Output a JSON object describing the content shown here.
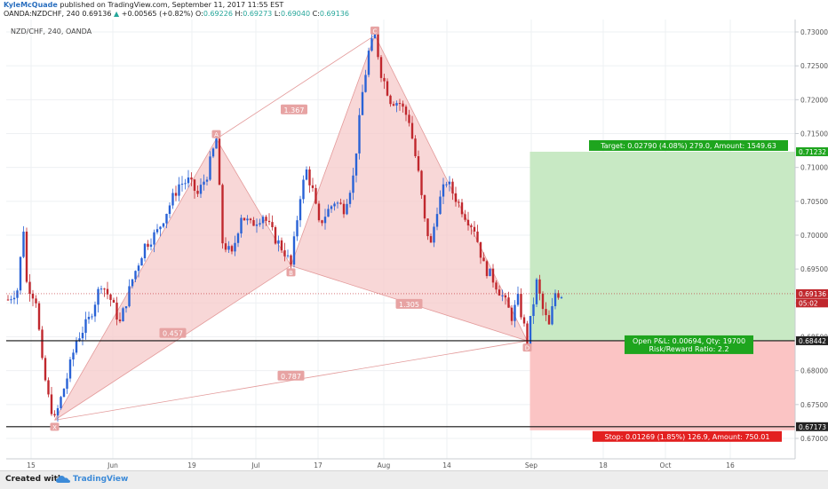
{
  "header": {
    "author": "KyleMcQuade",
    "published_text": "published on TradingView.com, September 11, 2017 11:55 EST",
    "symbol": "OANDA:NZDCHF, 240",
    "last": "0.69136",
    "change_arrow": "▲",
    "change": "+0.00565 (+0.82%)",
    "ohlc_o_label": "O:",
    "ohlc_o": "0.69226",
    "ohlc_h_label": "H:",
    "ohlc_h": "0.69273",
    "ohlc_l_label": "L:",
    "ohlc_l": "0.69040",
    "ohlc_c_label": "C:",
    "ohlc_c": "0.69136"
  },
  "footer": {
    "created_with": "Created with",
    "brand": "TradingView"
  },
  "colors": {
    "bull": "#2962d6",
    "bear": "#c0272d",
    "pattern_fill": "#f6c9c9",
    "pattern_line": "#e39a9a",
    "target_zone": "#c8e9c4",
    "stop_zone": "#fbc4c4",
    "target_label": "#1ea51e",
    "stop_label": "#e32020"
  },
  "chart_data": {
    "type": "candlestick",
    "instrument_label": "NZD/CHF, 240, OANDA",
    "x_tick_labels": [
      "15",
      "Jun",
      "19",
      "Jul",
      "17",
      "Aug",
      "14",
      "Sep",
      "18",
      "Oct",
      "16"
    ],
    "ylim": [
      0.6665,
      0.7315
    ],
    "y_ticks": [
      "0.73000",
      "0.72500",
      "0.72000",
      "0.71500",
      "0.71000",
      "0.70500",
      "0.70000",
      "0.69500",
      "0.69000",
      "0.68500",
      "0.68000",
      "0.67500",
      "0.67000"
    ],
    "y_tick_values": [
      0.73,
      0.725,
      0.72,
      0.715,
      0.71,
      0.705,
      0.7,
      0.695,
      0.69,
      0.685,
      0.68,
      0.675,
      0.67
    ],
    "price_tags": [
      {
        "label": "0.71232",
        "value": 0.71232,
        "color": "#1ea51e"
      },
      {
        "label": "0.69136",
        "value": 0.69136,
        "color": "#c0272d"
      },
      {
        "label": "05:02",
        "value": 0.69,
        "color": "#c0272d"
      },
      {
        "label": "0.68442",
        "value": 0.68442,
        "color": "#222222"
      },
      {
        "label": "0.67173",
        "value": 0.67173,
        "color": "#222222"
      }
    ],
    "horizontal_lines": [
      {
        "name": "entry",
        "value": 0.68442
      },
      {
        "name": "stop",
        "value": 0.67173
      }
    ],
    "current_price_line": 0.69136,
    "pattern_points": [
      {
        "label": "X",
        "i": 15,
        "price": 0.6727
      },
      {
        "label": "A",
        "i": 67,
        "price": 0.7142
      },
      {
        "label": "B",
        "i": 91,
        "price": 0.6955
      },
      {
        "label": "C",
        "i": 118,
        "price": 0.7295
      },
      {
        "label": "D",
        "i": 167,
        "price": 0.6844
      }
    ],
    "ratios": [
      {
        "label": "1.367",
        "price": 0.7185,
        "i": 92
      },
      {
        "label": "0.457",
        "price": 0.6855,
        "i": 53
      },
      {
        "label": "1.305",
        "price": 0.6898,
        "i": 129
      },
      {
        "label": "0.787",
        "price": 0.6792,
        "i": 91
      }
    ],
    "position": {
      "entry": 0.68442,
      "target": 0.71232,
      "stop": 0.67173,
      "start_i": 167,
      "end_i": 245,
      "target_text": "Target: 0.02790 (4.08%) 279.0, Amount: 1549.63",
      "stop_text": "Stop: 0.01269 (1.85%) 126.9, Amount: 750.01",
      "pnl_text": "Open P&L: 0.00694, Qty: 19700",
      "ratio_text": "Risk/Reward Ratio: 2.2"
    },
    "path_points": [
      [
        0,
        0.6905
      ],
      [
        3,
        0.692
      ],
      [
        5,
        0.701
      ],
      [
        6,
        0.693
      ],
      [
        9,
        0.6905
      ],
      [
        11,
        0.681
      ],
      [
        13,
        0.676
      ],
      [
        15,
        0.6727
      ],
      [
        19,
        0.679
      ],
      [
        22,
        0.6845
      ],
      [
        26,
        0.6875
      ],
      [
        30,
        0.693
      ],
      [
        33,
        0.6905
      ],
      [
        36,
        0.687
      ],
      [
        40,
        0.6935
      ],
      [
        44,
        0.6985
      ],
      [
        48,
        0.7005
      ],
      [
        52,
        0.7045
      ],
      [
        55,
        0.7075
      ],
      [
        58,
        0.708
      ],
      [
        61,
        0.706
      ],
      [
        64,
        0.709
      ],
      [
        67,
        0.7142
      ],
      [
        69,
        0.699
      ],
      [
        72,
        0.697
      ],
      [
        75,
        0.703
      ],
      [
        78,
        0.7015
      ],
      [
        82,
        0.703
      ],
      [
        86,
        0.6995
      ],
      [
        89,
        0.6975
      ],
      [
        91,
        0.6955
      ],
      [
        94,
        0.706
      ],
      [
        96,
        0.7095
      ],
      [
        98,
        0.7065
      ],
      [
        100,
        0.7015
      ],
      [
        102,
        0.703
      ],
      [
        105,
        0.705
      ],
      [
        108,
        0.704
      ],
      [
        111,
        0.7085
      ],
      [
        114,
        0.721
      ],
      [
        116,
        0.727
      ],
      [
        118,
        0.7295
      ],
      [
        120,
        0.724
      ],
      [
        123,
        0.72
      ],
      [
        126,
        0.7195
      ],
      [
        129,
        0.717
      ],
      [
        132,
        0.709
      ],
      [
        134,
        0.702
      ],
      [
        136,
        0.6985
      ],
      [
        138,
        0.704
      ],
      [
        141,
        0.708
      ],
      [
        144,
        0.7055
      ],
      [
        147,
        0.703
      ],
      [
        150,
        0.701
      ],
      [
        153,
        0.6955
      ],
      [
        156,
        0.6935
      ],
      [
        159,
        0.691
      ],
      [
        162,
        0.688
      ],
      [
        164,
        0.6905
      ],
      [
        167,
        0.6844
      ],
      [
        170,
        0.693
      ],
      [
        172,
        0.689
      ],
      [
        174,
        0.6865
      ],
      [
        176,
        0.6915
      ],
      [
        178,
        0.6913
      ]
    ]
  }
}
